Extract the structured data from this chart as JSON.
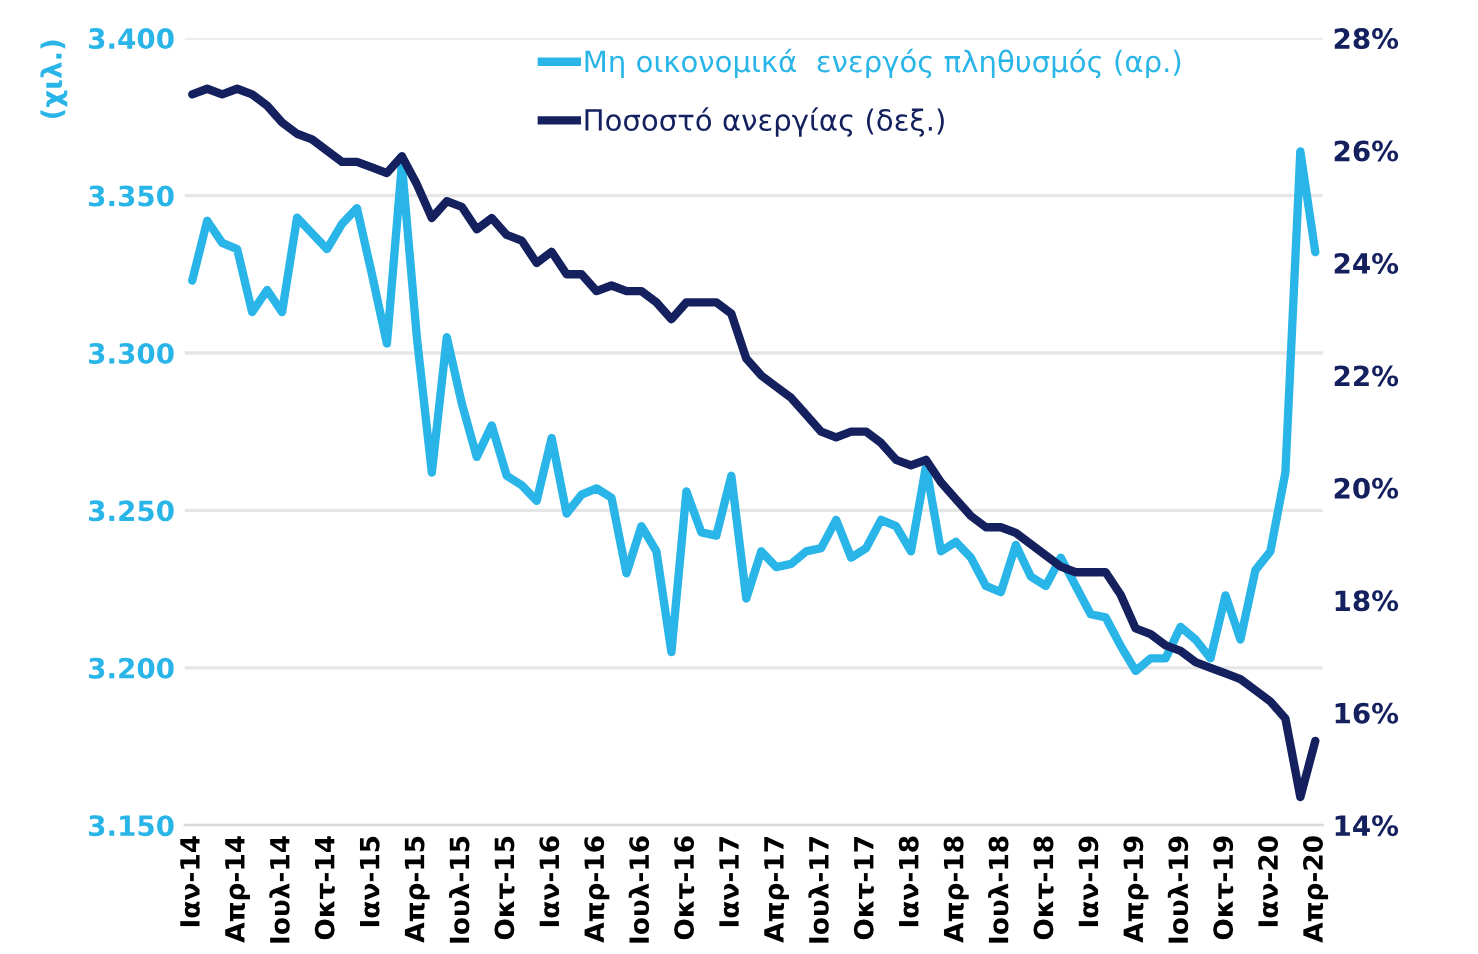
{
  "chart_data": {
    "type": "line",
    "categories": [
      "Ιαν-14",
      null,
      null,
      "Απρ-14",
      null,
      null,
      "Ιουλ-14",
      null,
      null,
      "Οκτ-14",
      null,
      null,
      "Ιαν-15",
      null,
      null,
      "Απρ-15",
      null,
      null,
      "Ιουλ-15",
      null,
      null,
      "Οκτ-15",
      null,
      null,
      "Ιαν-16",
      null,
      null,
      "Απρ-16",
      null,
      null,
      "Ιουλ-16",
      null,
      null,
      "Οκτ-16",
      null,
      null,
      "Ιαν-17",
      null,
      null,
      "Απρ-17",
      null,
      null,
      "Ιουλ-17",
      null,
      null,
      "Οκτ-17",
      null,
      null,
      "Ιαν-18",
      null,
      null,
      "Απρ-18",
      null,
      null,
      "Ιουλ-18",
      null,
      null,
      "Οκτ-18",
      null,
      null,
      "Ιαν-19",
      null,
      null,
      "Απρ-19",
      null,
      null,
      "Ιουλ-19",
      null,
      null,
      "Οκτ-19",
      null,
      null,
      "Ιαν-20",
      null,
      null,
      "Απρ-20"
    ],
    "series": [
      {
        "name": "Μη οικονομικά  ενεργός πληθυσμός (αρ.)",
        "color": "#29b5e8",
        "values": [
          3.323,
          3.342,
          3.335,
          3.333,
          3.313,
          3.32,
          3.313,
          3.343,
          3.338,
          3.333,
          3.341,
          3.346,
          3.325,
          3.303,
          3.36,
          3.305,
          3.262,
          3.305,
          3.284,
          3.267,
          3.277,
          3.261,
          3.258,
          3.253,
          3.273,
          3.249,
          3.255,
          3.257,
          3.254,
          3.23,
          3.245,
          3.237,
          3.205,
          3.256,
          3.243,
          3.242,
          3.261,
          3.222,
          3.237,
          3.232,
          3.233,
          3.237,
          3.238,
          3.247,
          3.235,
          3.238,
          3.247,
          3.245,
          3.237,
          3.264,
          3.237,
          3.24,
          3.235,
          3.226,
          3.224,
          3.239,
          3.229,
          3.226,
          3.235,
          3.226,
          3.217,
          3.216,
          3.207,
          3.199,
          3.203,
          3.203,
          3.213,
          3.209,
          3.203,
          3.223,
          3.209,
          3.231,
          3.237,
          3.262,
          3.364,
          3.332
        ]
      },
      {
        "name": "Ποσοστό ανεργίας (δεξ.)",
        "color": "#14215e",
        "axis": "y2",
        "values": [
          27.0,
          27.1,
          27.0,
          27.1,
          27.0,
          26.8,
          26.5,
          26.3,
          26.2,
          26.0,
          25.8,
          25.8,
          25.7,
          25.6,
          25.9,
          25.4,
          24.8,
          25.1,
          25.0,
          24.6,
          24.8,
          24.5,
          24.4,
          24.0,
          24.2,
          23.8,
          23.8,
          23.5,
          23.6,
          23.5,
          23.5,
          23.3,
          23.0,
          23.3,
          23.3,
          23.3,
          23.1,
          22.3,
          22.0,
          21.8,
          21.6,
          21.3,
          21.0,
          20.9,
          21.0,
          21.0,
          20.8,
          20.5,
          20.4,
          20.5,
          20.1,
          19.8,
          19.5,
          19.3,
          19.3,
          19.2,
          19.0,
          18.8,
          18.6,
          18.5,
          18.5,
          18.5,
          18.1,
          17.5,
          17.4,
          17.2,
          17.1,
          16.9,
          16.8,
          16.7,
          16.6,
          16.4,
          16.2,
          15.9,
          14.5,
          15.5
        ]
      }
    ],
    "ylabel": "(χιλ.)",
    "ylim": [
      3.15,
      3.4
    ],
    "yticks": [
      {
        "value": 3.15,
        "label": "3.150"
      },
      {
        "value": 3.2,
        "label": "3.200"
      },
      {
        "value": 3.25,
        "label": "3.250"
      },
      {
        "value": 3.3,
        "label": "3.300"
      },
      {
        "value": 3.35,
        "label": "3.350"
      },
      {
        "value": 3.4,
        "label": "3.400"
      }
    ],
    "y2lim": [
      14,
      28
    ],
    "y2ticks": [
      {
        "value": 14,
        "label": "14%"
      },
      {
        "value": 16,
        "label": "16%"
      },
      {
        "value": 18,
        "label": "18%"
      },
      {
        "value": 20,
        "label": "20%"
      },
      {
        "value": 22,
        "label": "22%"
      },
      {
        "value": 24,
        "label": "24%"
      },
      {
        "value": 26,
        "label": "26%"
      },
      {
        "value": 28,
        "label": "28%"
      }
    ],
    "grid": "y",
    "legend": "top right",
    "marker": "none",
    "line_style": "solid"
  }
}
